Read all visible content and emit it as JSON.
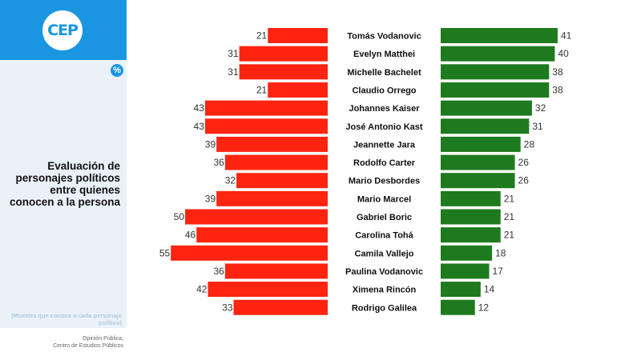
{
  "logo": {
    "text": "CEP"
  },
  "badge": {
    "symbol": "%"
  },
  "sidebar": {
    "title": "Evaluación de personajes políticos entre quienes conocen a la persona",
    "note": "(Muestra que conoce a cada personaje político)",
    "source_line1": "Opinión Pública,",
    "source_line2": "Centro de Estudios Públicos"
  },
  "colors": {
    "negative": "#ff2410",
    "positive": "#1e7a1e",
    "brand": "#1a96e0"
  },
  "chart_data": {
    "type": "bar",
    "orientation": "diverging-horizontal",
    "categories": [
      "Tomás Vodanovic",
      "Evelyn Matthei",
      "Michelle Bachelet",
      "Claudio Orrego",
      "Johannes Kaiser",
      "José Antonio Kast",
      "Jeannette Jara",
      "Rodolfo Carter",
      "Mario Desbordes",
      "Mario Marcel",
      "Gabriel Boric",
      "Carolina Tohá",
      "Camila Vallejo",
      "Paulina Vodanovic",
      "Ximena Rincón",
      "Rodrigo Galilea"
    ],
    "series": [
      {
        "values": [
          21,
          31,
          31,
          21,
          43,
          43,
          39,
          36,
          32,
          39,
          50,
          46,
          55,
          36,
          42,
          33
        ],
        "side": "left",
        "color": "#ff2410"
      },
      {
        "values": [
          41,
          40,
          38,
          38,
          32,
          31,
          28,
          26,
          26,
          21,
          21,
          21,
          18,
          17,
          14,
          12
        ],
        "side": "right",
        "color": "#1e7a1e"
      }
    ],
    "unit": "%"
  }
}
